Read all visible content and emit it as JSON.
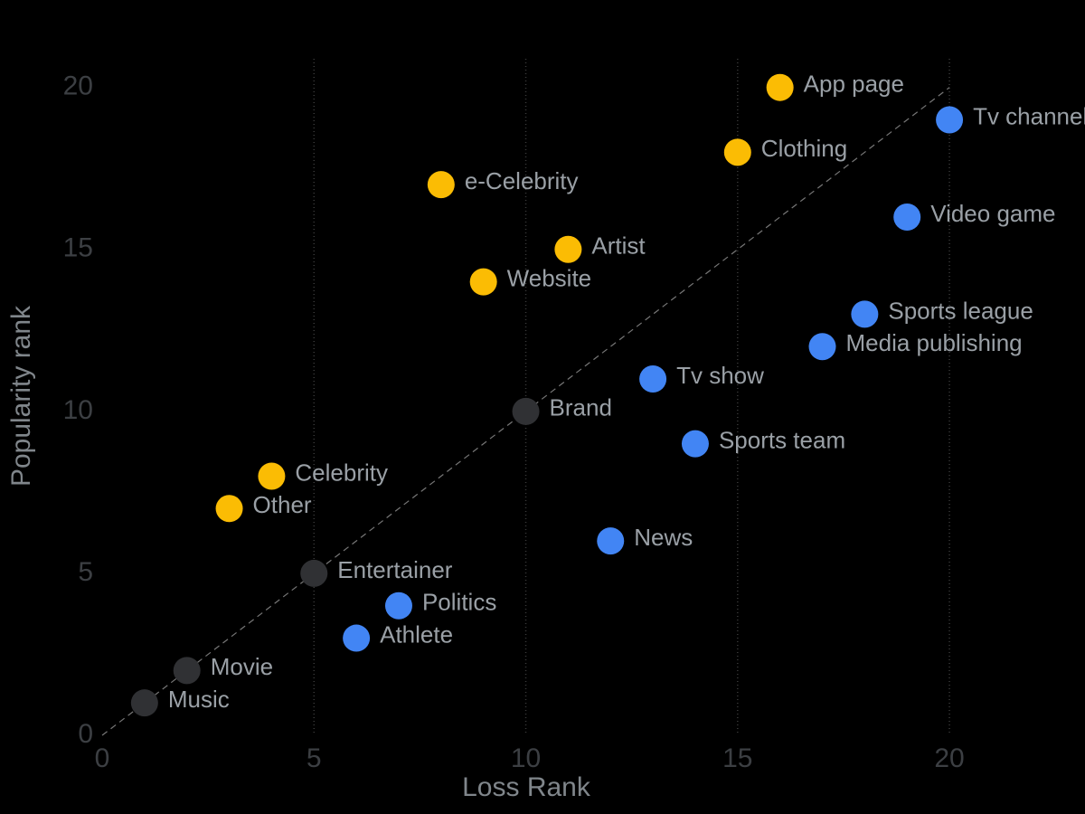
{
  "chart_data": {
    "type": "scatter",
    "x_label": "Loss Rank",
    "y_label": "Popularity rank",
    "xlim": [
      0,
      23.2
    ],
    "ylim": [
      0,
      22.7
    ],
    "xticks": [
      0,
      5,
      10,
      15,
      20
    ],
    "yticks": [
      0,
      5,
      10,
      15,
      20
    ],
    "grid": "x",
    "reference_line": {
      "x": [
        0,
        20
      ],
      "y": [
        0,
        20
      ]
    },
    "series": [
      {
        "color": "#fbbc04",
        "labels": [
          "App page",
          "Clothing",
          "e-Celebrity",
          "Artist",
          "Website",
          "Celebrity",
          "Other"
        ],
        "x": [
          16,
          15,
          8,
          11,
          9,
          4,
          3
        ],
        "values": [
          20,
          18,
          17,
          15,
          14,
          8,
          7
        ]
      },
      {
        "color": "#4285f4",
        "labels": [
          "Tv channel",
          "Video game",
          "Sports league",
          "Media publishing",
          "Tv show",
          "Sports team",
          "News",
          "Politics",
          "Athlete"
        ],
        "x": [
          20,
          19,
          18,
          17,
          13,
          14,
          12,
          7,
          6
        ],
        "values": [
          19,
          16,
          13,
          12,
          11,
          9,
          6,
          4,
          3
        ]
      },
      {
        "color": "#303134",
        "labels": [
          "Brand",
          "Entertainer",
          "Movie",
          "Music"
        ],
        "x": [
          10,
          5,
          2,
          1
        ],
        "values": [
          10,
          5,
          2,
          1
        ]
      }
    ]
  }
}
